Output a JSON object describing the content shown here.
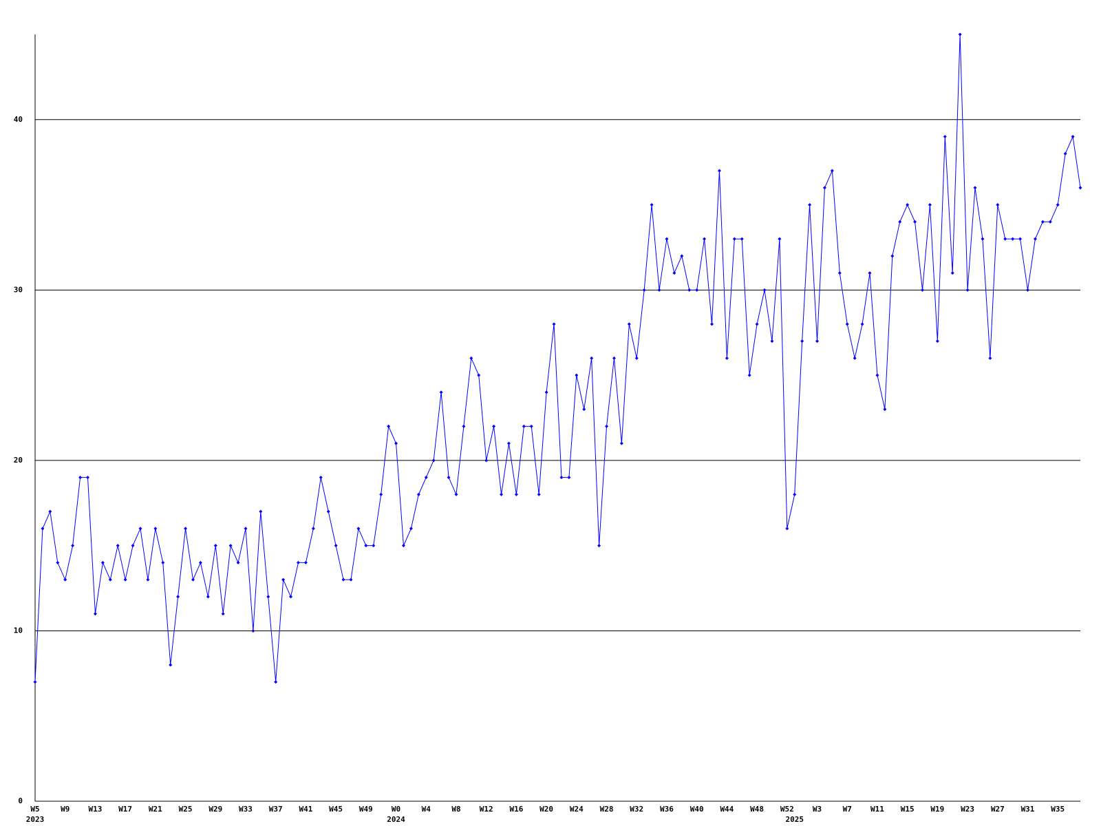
{
  "chart_data": {
    "type": "line",
    "categories": [
      "W5",
      null,
      null,
      null,
      "W9",
      null,
      null,
      null,
      "W13",
      null,
      null,
      null,
      "W17",
      null,
      null,
      null,
      "W21",
      null,
      null,
      null,
      "W25",
      null,
      null,
      null,
      "W29",
      null,
      null,
      null,
      "W33",
      null,
      null,
      null,
      "W37",
      null,
      null,
      null,
      "W41",
      null,
      null,
      null,
      "W45",
      null,
      null,
      null,
      "W49",
      null,
      null,
      null,
      "W0",
      null,
      null,
      null,
      "W4",
      null,
      null,
      null,
      "W8",
      null,
      null,
      null,
      "W12",
      null,
      null,
      null,
      "W16",
      null,
      null,
      null,
      "W20",
      null,
      null,
      null,
      "W24",
      null,
      null,
      null,
      "W28",
      null,
      null,
      null,
      "W32",
      null,
      null,
      null,
      "W36",
      null,
      null,
      null,
      "W40",
      null,
      null,
      null,
      "W44",
      null,
      null,
      null,
      "W48",
      null,
      null,
      null,
      "W52",
      null,
      null,
      null,
      "W3",
      null,
      null,
      null,
      "W7",
      null,
      null,
      null,
      "W11",
      null,
      null,
      null,
      "W15",
      null,
      null,
      null,
      "W19",
      null,
      null,
      null,
      "W23",
      null,
      null,
      null,
      "W27",
      null,
      null,
      null,
      "W31",
      null,
      null,
      null,
      "W35",
      null,
      null,
      null
    ],
    "category_years": [
      "2023",
      null,
      null,
      null,
      null,
      null,
      null,
      null,
      null,
      null,
      null,
      null,
      null,
      null,
      null,
      null,
      null,
      null,
      null,
      null,
      null,
      null,
      null,
      null,
      null,
      null,
      null,
      null,
      null,
      null,
      null,
      null,
      null,
      null,
      null,
      null,
      null,
      null,
      null,
      null,
      null,
      null,
      null,
      null,
      null,
      null,
      null,
      null,
      "2024",
      null,
      null,
      null,
      null,
      null,
      null,
      null,
      null,
      null,
      null,
      null,
      null,
      null,
      null,
      null,
      null,
      null,
      null,
      null,
      null,
      null,
      null,
      null,
      null,
      null,
      null,
      null,
      null,
      null,
      null,
      null,
      null,
      null,
      null,
      null,
      null,
      null,
      null,
      null,
      null,
      null,
      null,
      null,
      null,
      null,
      null,
      null,
      null,
      null,
      null,
      null,
      null,
      "2025",
      null,
      null,
      null,
      null,
      null,
      null,
      null,
      null,
      null,
      null,
      null,
      null,
      null,
      null,
      null,
      null,
      null,
      null,
      null,
      null,
      null,
      null,
      null,
      null,
      null,
      null,
      null,
      null,
      null,
      null,
      null,
      null,
      null,
      null,
      null,
      null,
      null,
      null
    ],
    "series": [
      {
        "color": "#0000ff",
        "values": [
          7,
          16,
          17,
          14,
          13,
          15,
          19,
          19,
          11,
          14,
          13,
          15,
          13,
          15,
          16,
          13,
          16,
          14,
          8,
          12,
          16,
          13,
          14,
          12,
          15,
          11,
          15,
          14,
          16,
          10,
          17,
          12,
          7,
          13,
          12,
          14,
          14,
          16,
          19,
          17,
          15,
          13,
          13,
          16,
          15,
          15,
          18,
          22,
          21,
          15,
          16,
          18,
          19,
          20,
          24,
          19,
          18,
          22,
          26,
          25,
          20,
          22,
          18,
          21,
          18,
          22,
          22,
          18,
          24,
          28,
          19,
          19,
          25,
          23,
          26,
          15,
          22,
          26,
          21,
          28,
          26,
          30,
          35,
          30,
          33,
          31,
          32,
          30,
          30,
          33,
          28,
          37,
          26,
          33,
          33,
          25,
          28,
          30,
          27,
          33,
          16,
          18,
          27,
          35,
          27,
          36,
          37,
          31,
          28,
          26,
          28,
          31,
          25,
          23,
          32,
          34,
          35,
          34,
          30,
          35,
          27,
          39,
          31,
          45,
          30,
          36,
          33,
          26,
          35,
          33,
          33,
          33,
          30,
          33,
          34,
          34,
          35,
          38,
          39,
          36
        ]
      }
    ],
    "ylim": [
      0,
      45
    ],
    "yticks": [
      0,
      10,
      20,
      30,
      40
    ],
    "grid": true
  }
}
